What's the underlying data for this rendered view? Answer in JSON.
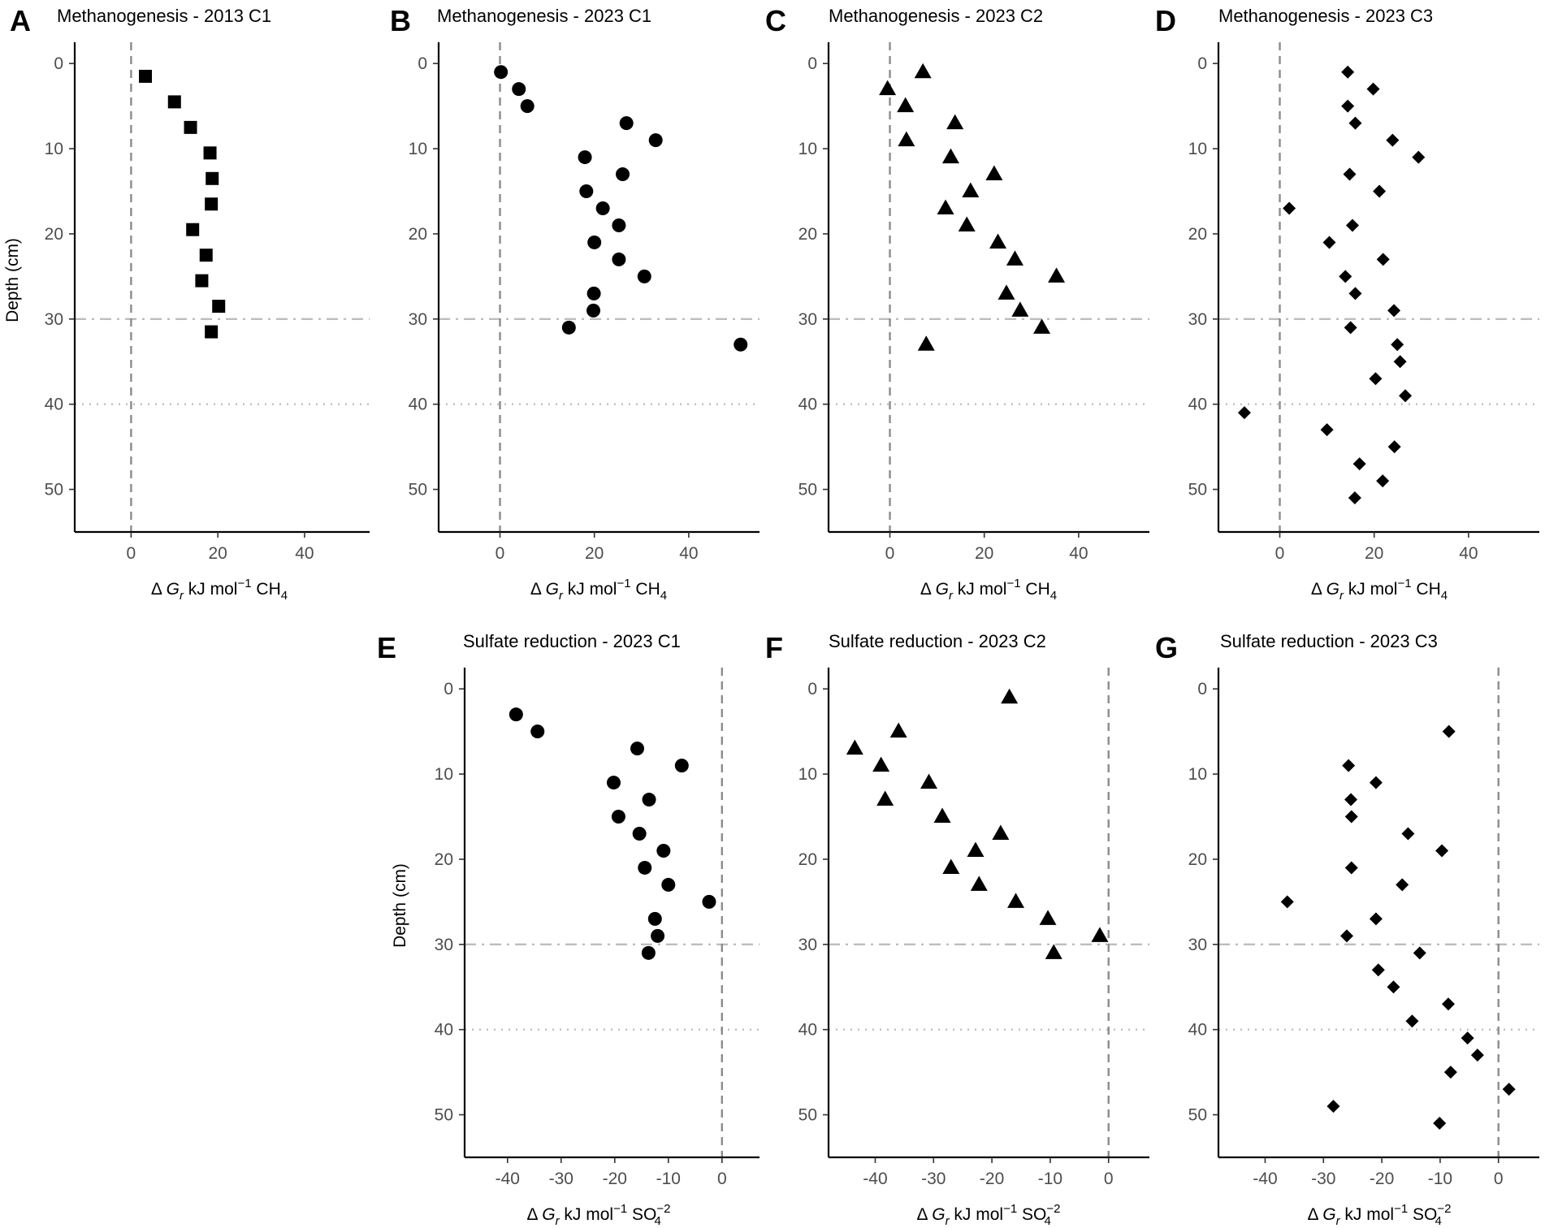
{
  "figure": {
    "y_label": "Depth (cm)",
    "x_label_ch4": {
      "prefix": "Δ ",
      "var": "G",
      "sub": "r",
      "unit": " kJ mol",
      "exp": "−1",
      "species": " CH",
      "species_sub": "4"
    },
    "x_label_so4": {
      "prefix": "Δ ",
      "var": "G",
      "sub": "r",
      "unit": " kJ mol",
      "exp": "−1",
      "species": " SO",
      "species_sub": "4",
      "species_sup": "−2"
    }
  },
  "colors": {
    "points": "#000000",
    "zero_line": "#8c8c8c",
    "ref_lines": "#bdbdbd"
  },
  "chart_data": [
    {
      "panel": "A",
      "type": "scatter",
      "title": "Methanogenesis - 2013 C1",
      "marker": "square",
      "xlabel": "Δ Gr kJ mol−1 CH4",
      "ylabel": "Depth (cm)",
      "xlim": [
        -13,
        55
      ],
      "ylim": [
        55,
        -2.5
      ],
      "xticks": [
        0,
        20,
        40
      ],
      "yticks": [
        0,
        10,
        20,
        30,
        40,
        50
      ],
      "zero_line_x": 0,
      "dashdot_depth": 30,
      "dotted_depth": 40,
      "points": [
        [
          3.3,
          1.5
        ],
        [
          10,
          4.5
        ],
        [
          13.7,
          7.5
        ],
        [
          18.2,
          10.5
        ],
        [
          18.7,
          13.5
        ],
        [
          18.5,
          16.5
        ],
        [
          14.2,
          19.5
        ],
        [
          17.3,
          22.5
        ],
        [
          16.3,
          25.5
        ],
        [
          20.2,
          28.5
        ],
        [
          18.5,
          31.5
        ]
      ]
    },
    {
      "panel": "B",
      "type": "scatter",
      "title": "Methanogenesis - 2023 C1",
      "marker": "circle",
      "xlabel": "Δ Gr kJ mol−1 CH4",
      "ylabel": "",
      "xlim": [
        -13,
        55
      ],
      "ylim": [
        55,
        -2.5
      ],
      "xticks": [
        0,
        20,
        40
      ],
      "yticks": [
        0,
        10,
        20,
        30,
        40,
        50
      ],
      "zero_line_x": 0,
      "dashdot_depth": 30,
      "dotted_depth": 40,
      "points": [
        [
          0.2,
          1
        ],
        [
          4,
          3
        ],
        [
          5.8,
          5
        ],
        [
          26.8,
          7
        ],
        [
          33,
          9
        ],
        [
          18,
          11
        ],
        [
          26,
          13
        ],
        [
          18.3,
          15
        ],
        [
          21.8,
          17
        ],
        [
          25.2,
          19
        ],
        [
          20,
          21
        ],
        [
          25.2,
          23
        ],
        [
          30.6,
          25
        ],
        [
          19.9,
          27
        ],
        [
          19.8,
          29
        ],
        [
          14.6,
          31
        ],
        [
          51,
          33
        ]
      ]
    },
    {
      "panel": "C",
      "type": "scatter",
      "title": "Methanogenesis - 2023 C2",
      "marker": "triangle",
      "xlabel": "Δ Gr kJ mol−1 CH4",
      "ylabel": "",
      "xlim": [
        -13,
        55
      ],
      "ylim": [
        55,
        -2.5
      ],
      "xticks": [
        0,
        20,
        40
      ],
      "yticks": [
        0,
        10,
        20,
        30,
        40,
        50
      ],
      "zero_line_x": 0,
      "dashdot_depth": 30,
      "dotted_depth": 40,
      "points": [
        [
          7,
          1
        ],
        [
          -0.5,
          3
        ],
        [
          3.3,
          5
        ],
        [
          13.8,
          7
        ],
        [
          3.5,
          9
        ],
        [
          12.9,
          11
        ],
        [
          22.1,
          13
        ],
        [
          17.1,
          15
        ],
        [
          11.8,
          17
        ],
        [
          16.3,
          19
        ],
        [
          22.9,
          21
        ],
        [
          26.5,
          23
        ],
        [
          35.3,
          25
        ],
        [
          24.7,
          27
        ],
        [
          27.6,
          29
        ],
        [
          32.2,
          31
        ],
        [
          7.7,
          33
        ]
      ]
    },
    {
      "panel": "D",
      "type": "scatter",
      "title": "Methanogenesis - 2023 C3",
      "marker": "diamond",
      "xlabel": "Δ Gr kJ mol−1 CH4",
      "ylabel": "",
      "xlim": [
        -13,
        55
      ],
      "ylim": [
        55,
        -2.5
      ],
      "xticks": [
        0,
        20,
        40
      ],
      "yticks": [
        0,
        10,
        20,
        30,
        40,
        50
      ],
      "zero_line_x": 0,
      "dashdot_depth": 30,
      "dotted_depth": 40,
      "points": [
        [
          14.4,
          1
        ],
        [
          19.8,
          3
        ],
        [
          14.4,
          5
        ],
        [
          16,
          7
        ],
        [
          23.9,
          9
        ],
        [
          29.4,
          11
        ],
        [
          14.8,
          13
        ],
        [
          21.1,
          15
        ],
        [
          2,
          17
        ],
        [
          15.4,
          19
        ],
        [
          10.5,
          21
        ],
        [
          21.9,
          23
        ],
        [
          13.9,
          25
        ],
        [
          16,
          27
        ],
        [
          24.2,
          29
        ],
        [
          15,
          31
        ],
        [
          24.9,
          33
        ],
        [
          25.5,
          35
        ],
        [
          20.3,
          37
        ],
        [
          26.6,
          39
        ],
        [
          -7.5,
          41
        ],
        [
          10,
          43
        ],
        [
          24.3,
          45
        ],
        [
          16.9,
          47
        ],
        [
          21.8,
          49
        ],
        [
          15.9,
          51
        ]
      ]
    },
    {
      "panel": "E",
      "type": "scatter",
      "title": "Sulfate reduction - 2023 C1",
      "marker": "circle",
      "xlabel": "Δ Gr kJ mol−1 SO4−2",
      "ylabel": "Depth (cm)",
      "xlim": [
        -48,
        7
      ],
      "ylim": [
        55,
        -2.5
      ],
      "xticks": [
        -40,
        -30,
        -20,
        -10,
        0
      ],
      "yticks": [
        0,
        10,
        20,
        30,
        40,
        50
      ],
      "zero_line_x": 0,
      "dashdot_depth": 30,
      "dotted_depth": 40,
      "points": [
        [
          -38.4,
          3
        ],
        [
          -34.4,
          5
        ],
        [
          -15.8,
          7
        ],
        [
          -7.5,
          9
        ],
        [
          -20.2,
          11
        ],
        [
          -13.6,
          13
        ],
        [
          -19.3,
          15
        ],
        [
          -15.4,
          17
        ],
        [
          -10.9,
          19
        ],
        [
          -14.4,
          21
        ],
        [
          -10,
          23
        ],
        [
          -2.4,
          25
        ],
        [
          -12.5,
          27
        ],
        [
          -12,
          29
        ],
        [
          -13.7,
          31
        ]
      ]
    },
    {
      "panel": "F",
      "type": "scatter",
      "title": "Sulfate reduction - 2023 C2",
      "marker": "triangle",
      "xlabel": "Δ Gr kJ mol−1 SO4−2",
      "ylabel": "",
      "xlim": [
        -48,
        7
      ],
      "ylim": [
        55,
        -2.5
      ],
      "xticks": [
        -40,
        -30,
        -20,
        -10,
        0
      ],
      "yticks": [
        0,
        10,
        20,
        30,
        40,
        50
      ],
      "zero_line_x": 0,
      "dashdot_depth": 30,
      "dotted_depth": 40,
      "points": [
        [
          -17,
          1
        ],
        [
          -36,
          5
        ],
        [
          -43.5,
          7
        ],
        [
          -39,
          9
        ],
        [
          -30.8,
          11
        ],
        [
          -38.3,
          13
        ],
        [
          -28.5,
          15
        ],
        [
          -18.5,
          17
        ],
        [
          -22.8,
          19
        ],
        [
          -27,
          21
        ],
        [
          -22.2,
          23
        ],
        [
          -15.9,
          25
        ],
        [
          -10.4,
          27
        ],
        [
          -1.5,
          29
        ],
        [
          -9.4,
          31
        ]
      ]
    },
    {
      "panel": "G",
      "type": "scatter",
      "title": "Sulfate reduction - 2023 C3",
      "marker": "diamond",
      "xlabel": "Δ Gr kJ mol−1 SO4−2",
      "ylabel": "",
      "xlim": [
        -48,
        7
      ],
      "ylim": [
        55,
        -2.5
      ],
      "xticks": [
        -40,
        -30,
        -20,
        -10,
        0
      ],
      "yticks": [
        0,
        10,
        20,
        30,
        40,
        50
      ],
      "zero_line_x": 0,
      "dashdot_depth": 30,
      "dotted_depth": 40,
      "points": [
        [
          -8.5,
          5
        ],
        [
          -25.7,
          9
        ],
        [
          -21,
          11
        ],
        [
          -25.3,
          13
        ],
        [
          -25.2,
          15
        ],
        [
          -15.5,
          17
        ],
        [
          -9.7,
          19
        ],
        [
          -25.2,
          21
        ],
        [
          -16.5,
          23
        ],
        [
          -36.2,
          25
        ],
        [
          -21,
          27
        ],
        [
          -26,
          29
        ],
        [
          -13.5,
          31
        ],
        [
          -20.6,
          33
        ],
        [
          -18,
          35
        ],
        [
          -8.6,
          37
        ],
        [
          -14.8,
          39
        ],
        [
          -5.3,
          41
        ],
        [
          -3.6,
          43
        ],
        [
          -8.2,
          45
        ],
        [
          1.8,
          47
        ],
        [
          -28.3,
          49
        ],
        [
          -10.1,
          51
        ]
      ]
    }
  ]
}
